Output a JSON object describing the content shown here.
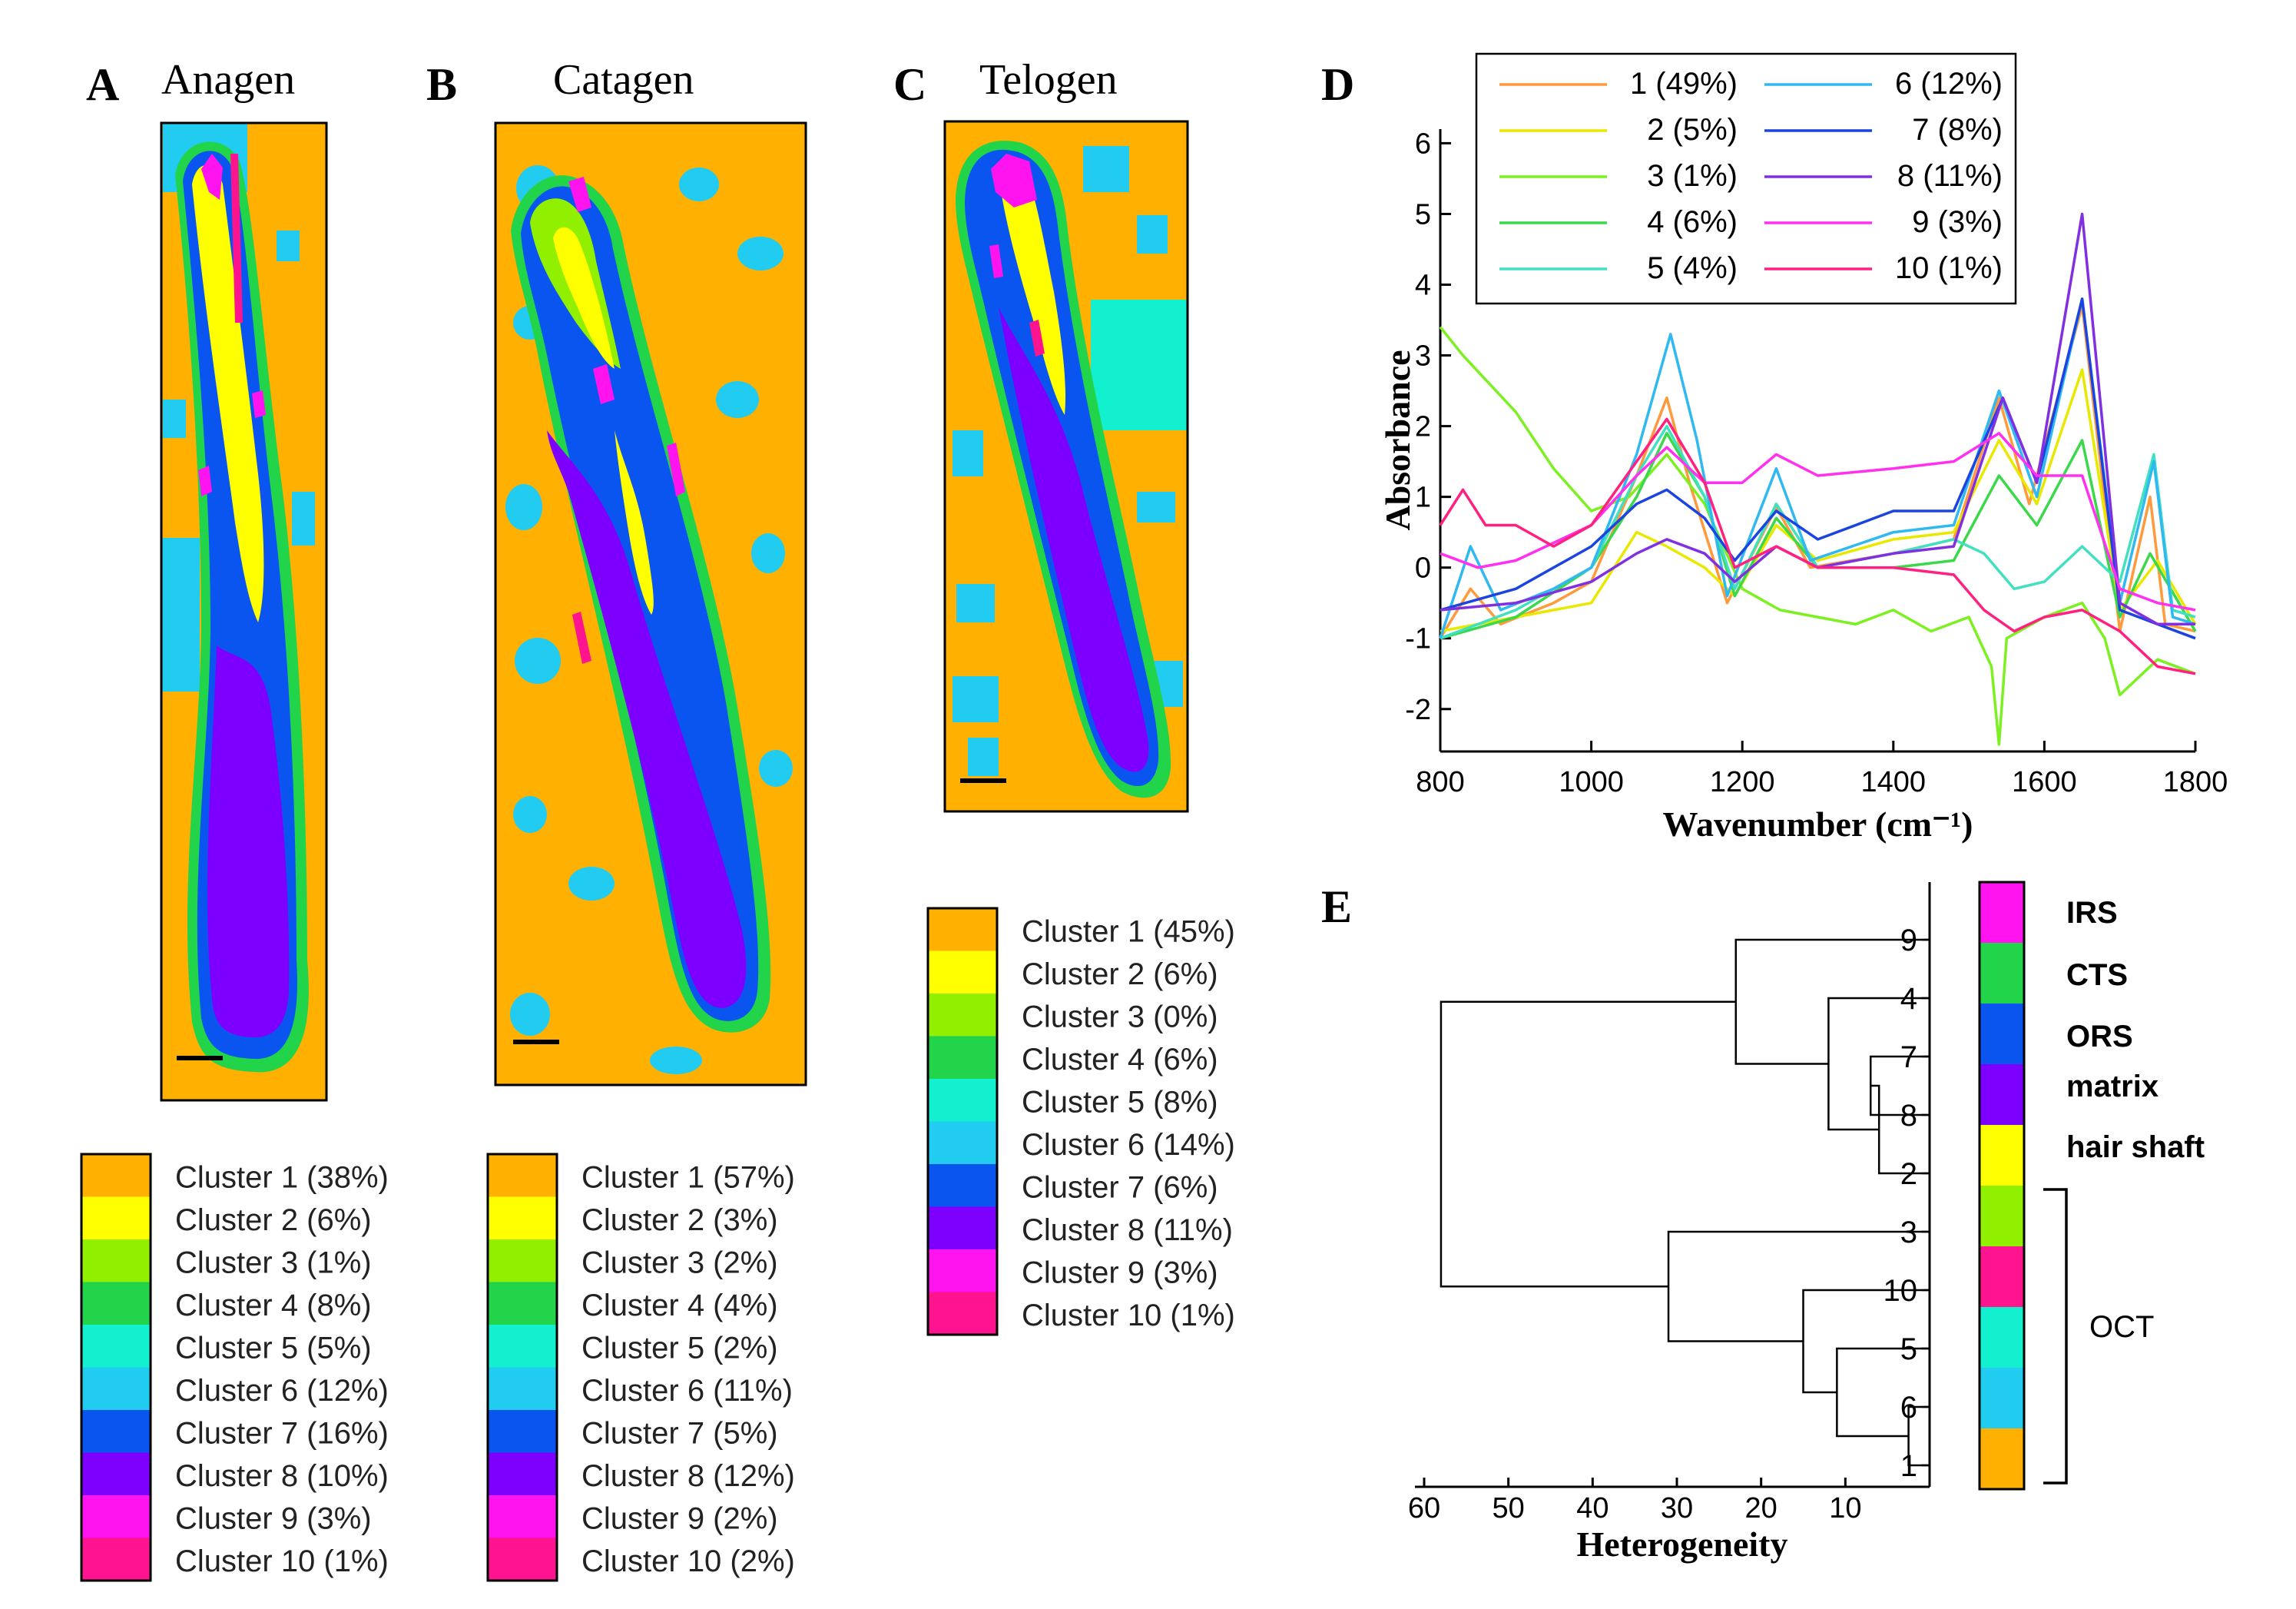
{
  "colors": {
    "c1": "#ffb000",
    "c2": "#ffff00",
    "c3": "#90f000",
    "c4": "#22d44a",
    "c5": "#12f0d0",
    "c6": "#22ccf0",
    "c7": "#0a55f0",
    "c8": "#7d00ff",
    "c9": "#ff14f0",
    "c10": "#ff1490"
  },
  "panels": {
    "A": {
      "letter": "A",
      "title": "Anagen"
    },
    "B": {
      "letter": "B",
      "title": "Catagen"
    },
    "C": {
      "letter": "C",
      "title": "Telogen"
    },
    "D": {
      "letter": "D"
    },
    "E": {
      "letter": "E"
    }
  },
  "legends": {
    "A": [
      "Cluster 1 (38%)",
      "Cluster 2 (6%)",
      "Cluster 3 (1%)",
      "Cluster 4 (8%)",
      "Cluster 5 (5%)",
      "Cluster 6 (12%)",
      "Cluster 7 (16%)",
      "Cluster 8 (10%)",
      "Cluster 9 (3%)",
      "Cluster 10 (1%)"
    ],
    "B": [
      "Cluster 1 (57%)",
      "Cluster 2 (3%)",
      "Cluster 3 (2%)",
      "Cluster 4 (4%)",
      "Cluster 5 (2%)",
      "Cluster 6 (11%)",
      "Cluster 7 (5%)",
      "Cluster 8 (12%)",
      "Cluster 9 (2%)",
      "Cluster 10 (2%)"
    ],
    "C": [
      "Cluster 1 (45%)",
      "Cluster 2 (6%)",
      "Cluster 3 (0%)",
      "Cluster 4 (6%)",
      "Cluster 5 (8%)",
      "Cluster 6 (14%)",
      "Cluster 7 (6%)",
      "Cluster 8 (11%)",
      "Cluster 9 (3%)",
      "Cluster 10 (1%)"
    ]
  },
  "chart_data": [
    {
      "type": "line",
      "panel": "D",
      "xlabel": "Wavenumber (cm⁻¹)",
      "ylabel": "Absorbance",
      "xlim": [
        800,
        1800
      ],
      "ylim": [
        -2.6,
        6.2
      ],
      "xticks": [
        "800",
        "1000",
        "1200",
        "1400",
        "1600",
        "1800"
      ],
      "yticks": [
        "-2",
        "-1",
        "0",
        "1",
        "2",
        "3",
        "4",
        "5",
        "6"
      ],
      "legend": [
        "1 (49%)",
        "2 (5%)",
        "3 (1%)",
        "4 (6%)",
        "5 (4%)",
        "6 (12%)",
        "7 (8%)",
        "8 (11%)",
        "9 (3%)",
        "10 (1%)"
      ],
      "series": [
        {
          "name": "1 (49%)",
          "color": "#ff9a3c",
          "points": [
            [
              800,
              -1.0
            ],
            [
              840,
              -0.3
            ],
            [
              880,
              -0.8
            ],
            [
              950,
              -0.5
            ],
            [
              1000,
              -0.2
            ],
            [
              1060,
              1.3
            ],
            [
              1100,
              2.4
            ],
            [
              1130,
              1.2
            ],
            [
              1180,
              -0.5
            ],
            [
              1245,
              0.85
            ],
            [
              1290,
              0.0
            ],
            [
              1400,
              0.2
            ],
            [
              1440,
              0.3
            ],
            [
              1480,
              0.4
            ],
            [
              1540,
              2.4
            ],
            [
              1580,
              0.9
            ],
            [
              1650,
              3.7
            ],
            [
              1700,
              -0.9
            ],
            [
              1740,
              1.0
            ],
            [
              1760,
              -0.8
            ],
            [
              1800,
              -0.9
            ]
          ]
        },
        {
          "name": "2 (5%)",
          "color": "#e8e800",
          "points": [
            [
              800,
              -0.9
            ],
            [
              900,
              -0.7
            ],
            [
              1000,
              -0.5
            ],
            [
              1060,
              0.5
            ],
            [
              1100,
              0.3
            ],
            [
              1150,
              0.0
            ],
            [
              1190,
              -0.4
            ],
            [
              1245,
              0.6
            ],
            [
              1300,
              0.1
            ],
            [
              1400,
              0.4
            ],
            [
              1480,
              0.5
            ],
            [
              1540,
              1.8
            ],
            [
              1590,
              0.9
            ],
            [
              1650,
              2.8
            ],
            [
              1700,
              -0.6
            ],
            [
              1750,
              0.1
            ],
            [
              1800,
              -0.8
            ]
          ]
        },
        {
          "name": "3 (1%)",
          "color": "#7cf020",
          "points": [
            [
              800,
              3.4
            ],
            [
              830,
              3.0
            ],
            [
              900,
              2.2
            ],
            [
              950,
              1.4
            ],
            [
              1000,
              0.8
            ],
            [
              1050,
              1.0
            ],
            [
              1100,
              1.6
            ],
            [
              1150,
              0.9
            ],
            [
              1200,
              -0.3
            ],
            [
              1250,
              -0.6
            ],
            [
              1300,
              -0.7
            ],
            [
              1350,
              -0.8
            ],
            [
              1400,
              -0.6
            ],
            [
              1450,
              -0.9
            ],
            [
              1500,
              -0.7
            ],
            [
              1530,
              -1.4
            ],
            [
              1540,
              -2.5
            ],
            [
              1550,
              -1.0
            ],
            [
              1600,
              -0.7
            ],
            [
              1650,
              -0.5
            ],
            [
              1680,
              -1.0
            ],
            [
              1700,
              -1.8
            ],
            [
              1750,
              -1.3
            ],
            [
              1800,
              -1.5
            ]
          ]
        },
        {
          "name": "4 (6%)",
          "color": "#3cd84c",
          "points": [
            [
              800,
              -1.0
            ],
            [
              900,
              -0.7
            ],
            [
              1000,
              0.0
            ],
            [
              1060,
              1.0
            ],
            [
              1100,
              1.9
            ],
            [
              1150,
              1.0
            ],
            [
              1190,
              -0.4
            ],
            [
              1245,
              0.7
            ],
            [
              1300,
              0.0
            ],
            [
              1400,
              0.0
            ],
            [
              1480,
              0.1
            ],
            [
              1540,
              1.3
            ],
            [
              1590,
              0.6
            ],
            [
              1650,
              1.8
            ],
            [
              1700,
              -0.7
            ],
            [
              1740,
              0.2
            ],
            [
              1800,
              -0.9
            ]
          ]
        },
        {
          "name": "5 (4%)",
          "color": "#40e0c0",
          "points": [
            [
              800,
              -1.0
            ],
            [
              900,
              -0.6
            ],
            [
              1000,
              0.0
            ],
            [
              1060,
              1.3
            ],
            [
              1100,
              2.0
            ],
            [
              1150,
              1.0
            ],
            [
              1190,
              -0.3
            ],
            [
              1245,
              0.9
            ],
            [
              1300,
              0.0
            ],
            [
              1400,
              0.2
            ],
            [
              1480,
              0.4
            ],
            [
              1520,
              0.2
            ],
            [
              1560,
              -0.3
            ],
            [
              1600,
              -0.2
            ],
            [
              1650,
              0.3
            ],
            [
              1700,
              -0.2
            ],
            [
              1745,
              1.6
            ],
            [
              1770,
              -0.6
            ],
            [
              1800,
              -0.7
            ]
          ]
        },
        {
          "name": "6 (12%)",
          "color": "#30b8f0",
          "points": [
            [
              800,
              -1.0
            ],
            [
              840,
              0.3
            ],
            [
              880,
              -0.6
            ],
            [
              950,
              -0.3
            ],
            [
              1000,
              0.0
            ],
            [
              1060,
              1.6
            ],
            [
              1105,
              3.3
            ],
            [
              1140,
              1.8
            ],
            [
              1180,
              -0.4
            ],
            [
              1245,
              1.4
            ],
            [
              1290,
              0.1
            ],
            [
              1400,
              0.5
            ],
            [
              1480,
              0.6
            ],
            [
              1540,
              2.5
            ],
            [
              1590,
              1.0
            ],
            [
              1650,
              3.8
            ],
            [
              1700,
              -0.5
            ],
            [
              1745,
              1.5
            ],
            [
              1770,
              -0.7
            ],
            [
              1800,
              -0.8
            ]
          ]
        },
        {
          "name": "7 (8%)",
          "color": "#1c44e0",
          "points": [
            [
              800,
              -0.6
            ],
            [
              900,
              -0.3
            ],
            [
              1000,
              0.3
            ],
            [
              1060,
              0.9
            ],
            [
              1100,
              1.1
            ],
            [
              1150,
              0.7
            ],
            [
              1190,
              0.1
            ],
            [
              1245,
              0.8
            ],
            [
              1300,
              0.4
            ],
            [
              1400,
              0.8
            ],
            [
              1480,
              0.8
            ],
            [
              1545,
              2.4
            ],
            [
              1590,
              1.2
            ],
            [
              1650,
              3.8
            ],
            [
              1700,
              -0.6
            ],
            [
              1750,
              -0.8
            ],
            [
              1800,
              -1.0
            ]
          ]
        },
        {
          "name": "8 (11%)",
          "color": "#8030e0",
          "points": [
            [
              800,
              -0.6
            ],
            [
              900,
              -0.5
            ],
            [
              1000,
              -0.2
            ],
            [
              1060,
              0.2
            ],
            [
              1100,
              0.4
            ],
            [
              1150,
              0.2
            ],
            [
              1190,
              -0.2
            ],
            [
              1245,
              0.3
            ],
            [
              1300,
              0.0
            ],
            [
              1400,
              0.2
            ],
            [
              1480,
              0.3
            ],
            [
              1545,
              2.4
            ],
            [
              1590,
              1.2
            ],
            [
              1650,
              5.0
            ],
            [
              1700,
              -0.5
            ],
            [
              1750,
              -0.8
            ],
            [
              1800,
              -0.8
            ]
          ]
        },
        {
          "name": "9 (3%)",
          "color": "#ff30f0",
          "points": [
            [
              800,
              0.2
            ],
            [
              850,
              0.0
            ],
            [
              900,
              0.1
            ],
            [
              1000,
              0.6
            ],
            [
              1060,
              1.3
            ],
            [
              1100,
              1.7
            ],
            [
              1150,
              1.2
            ],
            [
              1200,
              1.2
            ],
            [
              1245,
              1.6
            ],
            [
              1300,
              1.3
            ],
            [
              1400,
              1.4
            ],
            [
              1480,
              1.5
            ],
            [
              1540,
              1.9
            ],
            [
              1590,
              1.3
            ],
            [
              1650,
              1.3
            ],
            [
              1700,
              -0.3
            ],
            [
              1750,
              -0.5
            ],
            [
              1800,
              -0.6
            ]
          ]
        },
        {
          "name": "10 (1%)",
          "color": "#ff2080",
          "points": [
            [
              800,
              0.6
            ],
            [
              830,
              1.1
            ],
            [
              860,
              0.6
            ],
            [
              900,
              0.6
            ],
            [
              950,
              0.3
            ],
            [
              1000,
              0.6
            ],
            [
              1060,
              1.5
            ],
            [
              1100,
              2.1
            ],
            [
              1150,
              1.2
            ],
            [
              1190,
              0.0
            ],
            [
              1245,
              0.3
            ],
            [
              1300,
              0.0
            ],
            [
              1400,
              0.0
            ],
            [
              1480,
              -0.1
            ],
            [
              1520,
              -0.6
            ],
            [
              1560,
              -0.9
            ],
            [
              1600,
              -0.7
            ],
            [
              1650,
              -0.6
            ],
            [
              1700,
              -0.9
            ],
            [
              1750,
              -1.4
            ],
            [
              1800,
              -1.5
            ]
          ]
        }
      ]
    },
    {
      "type": "dendrogram",
      "panel": "E",
      "xlabel": "Heterogeneity",
      "xlim": [
        60,
        0
      ],
      "xticks": [
        "60",
        "50",
        "40",
        "30",
        "20",
        "10"
      ],
      "leaves": [
        "9",
        "4",
        "7",
        "8",
        "2",
        "3",
        "10",
        "5",
        "6",
        "1"
      ],
      "merges": [
        {
          "a": "7",
          "b": "8",
          "height": 7
        },
        {
          "a": "(7,8)",
          "b": "2",
          "height": 6
        },
        {
          "a": "4",
          "b": "(7,8,2)",
          "height": 12
        },
        {
          "a": "9",
          "b": "(4,7,8,2)",
          "height": 23
        },
        {
          "a": "6",
          "b": "1",
          "height": 2.5
        },
        {
          "a": "5",
          "b": "(6,1)",
          "height": 11
        },
        {
          "a": "10",
          "b": "(5,6,1)",
          "height": 15
        },
        {
          "a": "3",
          "b": "(10,5,6,1)",
          "height": 31
        },
        {
          "a": "upper",
          "b": "lower",
          "height": 58
        }
      ],
      "regions": [
        {
          "label": "IRS",
          "color": "#ff14f0"
        },
        {
          "label": "CTS",
          "color": "#22d44a"
        },
        {
          "label": "ORS",
          "color": "#0a55f0"
        },
        {
          "label": "matrix",
          "color": "#7d00ff"
        },
        {
          "label": "hair shaft",
          "color": "#ffff00"
        }
      ],
      "bracket_label": "OCT",
      "colorbar": [
        "#ff14f0",
        "#22d44a",
        "#0a55f0",
        "#7d00ff",
        "#ffff00",
        "#90f000",
        "#ff1490",
        "#12f0d0",
        "#22ccf0",
        "#ffb000"
      ]
    }
  ]
}
